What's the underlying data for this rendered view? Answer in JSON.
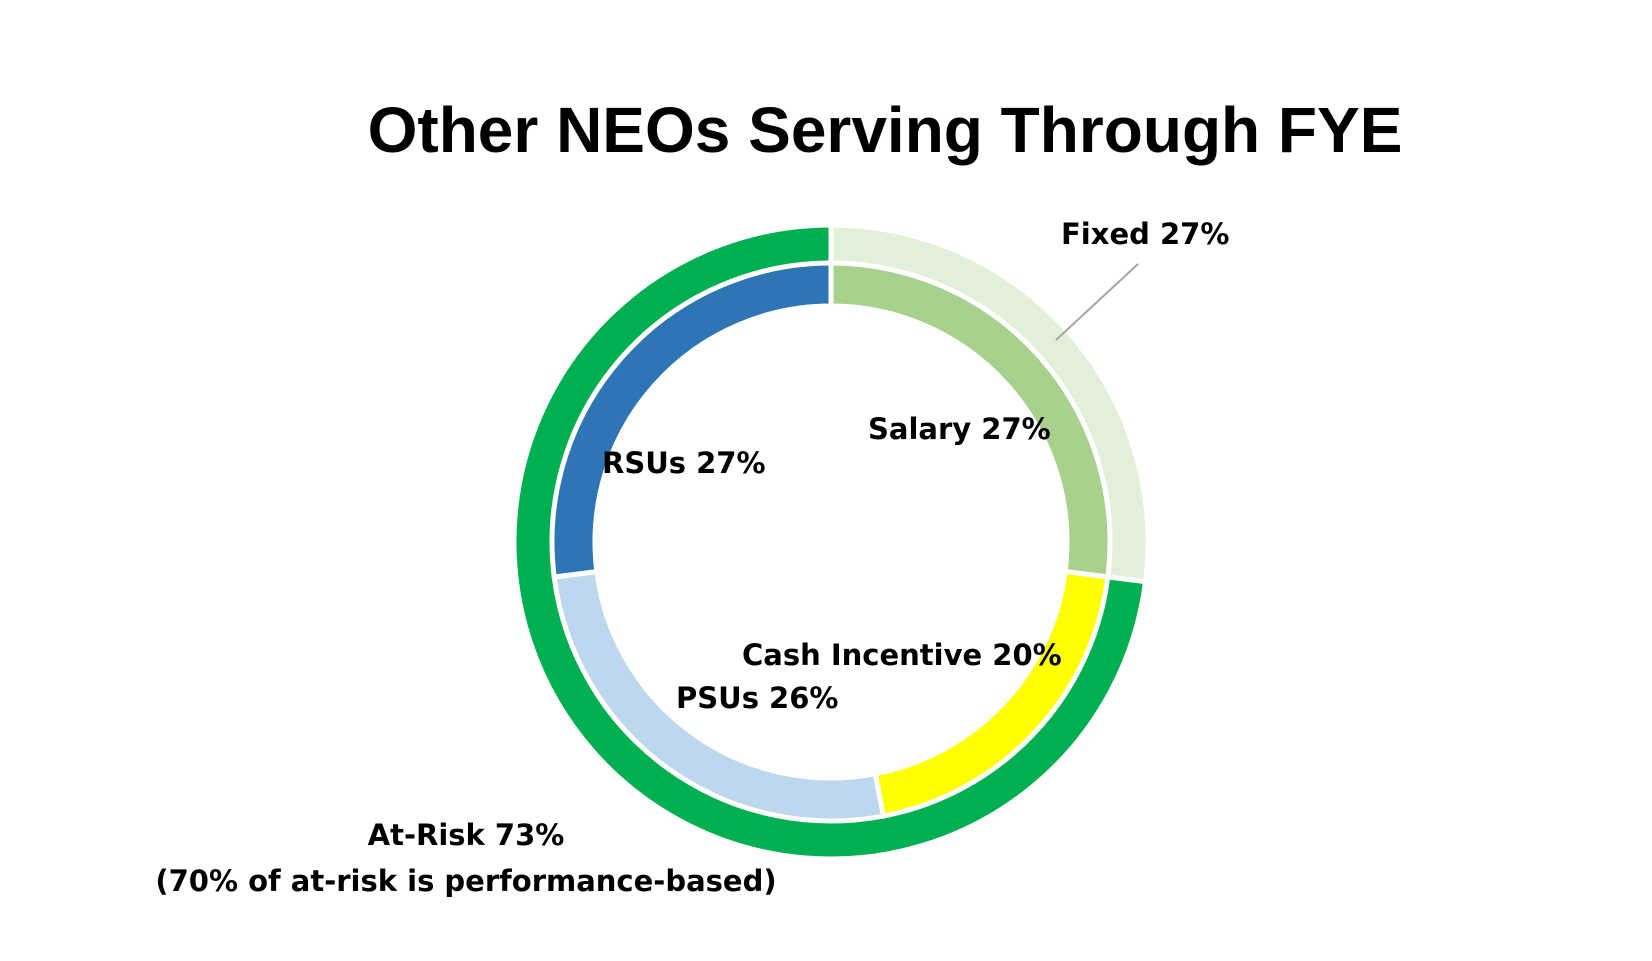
{
  "chart_data": {
    "type": "pie",
    "subtype": "nested-donut",
    "title": "Other NEOs Serving Through FYE",
    "outer_ring": [
      {
        "name": "Fixed",
        "value": 27,
        "label": "Fixed 27%",
        "color": "#E2F0D9"
      },
      {
        "name": "At-Risk",
        "value": 73,
        "label": "At-Risk 73%",
        "note": "(70% of at-risk is performance-based)",
        "color": "#00B050"
      }
    ],
    "inner_ring": [
      {
        "name": "Salary",
        "value": 27,
        "label": "Salary 27%",
        "color": "#A9D18E"
      },
      {
        "name": "Cash Incentive",
        "value": 20,
        "label": "Cash Incentive 20%",
        "color": "#FFFF00"
      },
      {
        "name": "PSUs",
        "value": 26,
        "label": "PSUs 26%",
        "color": "#BDD7EE"
      },
      {
        "name": "RSUs",
        "value": 27,
        "label": "RSUs 27%",
        "color": "#2E75B6"
      }
    ],
    "leader_line_color": "#A6A6A6"
  }
}
